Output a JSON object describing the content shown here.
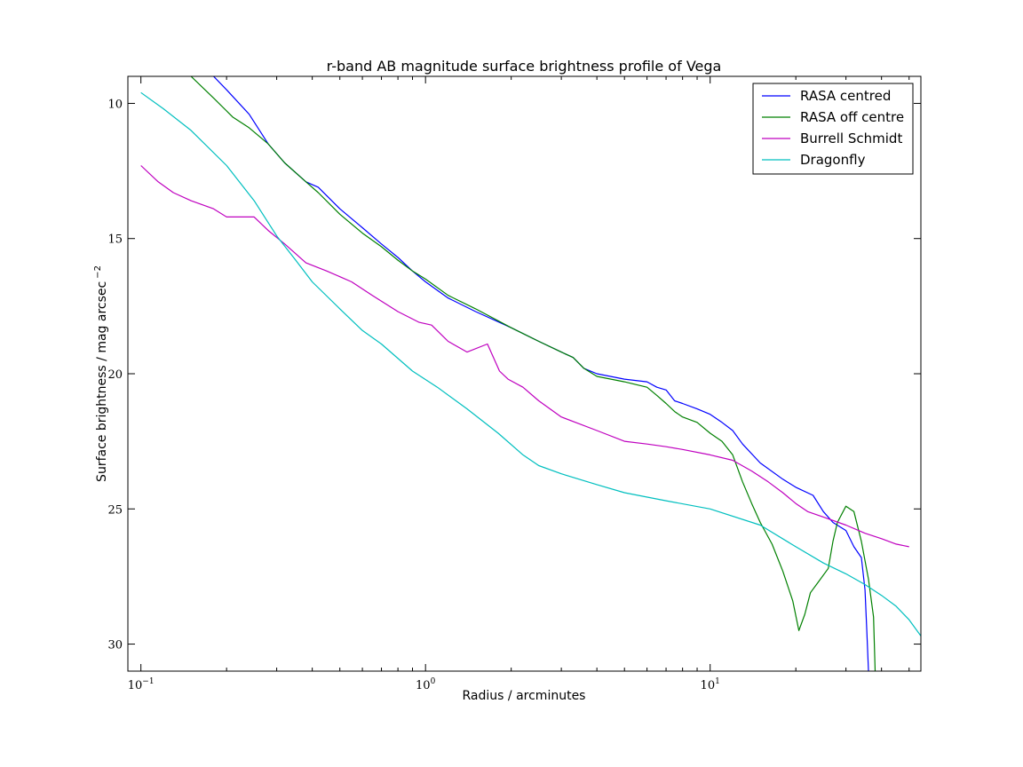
{
  "chart_data": {
    "type": "line",
    "title": "r-band AB magnitude surface brightness profile of Vega",
    "xlabel": "Radius / arcminutes",
    "ylabel": "Surface brightness / mag arcsec",
    "ylabel_sup": "−2",
    "xscale": "log",
    "xlim": [
      0.09,
      55
    ],
    "ylim": [
      31,
      9
    ],
    "y_inverted": true,
    "grid": false,
    "legend_position": "top-right",
    "x_ticks": [
      {
        "value": 0.1,
        "base": "10",
        "exp": "−1"
      },
      {
        "value": 1,
        "base": "10",
        "exp": "0"
      },
      {
        "value": 10,
        "base": "10",
        "exp": "1"
      }
    ],
    "y_ticks": [
      10,
      15,
      20,
      25,
      30
    ],
    "series": [
      {
        "name": "RASA centred",
        "color": "#0000ff",
        "x": [
          0.18,
          0.2,
          0.24,
          0.28,
          0.32,
          0.38,
          0.42,
          0.5,
          0.6,
          0.7,
          0.8,
          0.9,
          1.0,
          1.2,
          1.5,
          2.0,
          2.5,
          3.0,
          3.3,
          3.6,
          4.0,
          5.0,
          6.0,
          6.5,
          7.0,
          7.5,
          8.0,
          9.0,
          10.0,
          11.0,
          12.0,
          13.0,
          15.0,
          18.0,
          20.0,
          23.0,
          25.0,
          27.0,
          30.0,
          32.0,
          34.0,
          35.0,
          35.5,
          36.0
        ],
        "y": [
          9.0,
          9.5,
          10.4,
          11.5,
          12.2,
          12.9,
          13.1,
          13.9,
          14.6,
          15.2,
          15.7,
          16.2,
          16.6,
          17.2,
          17.7,
          18.3,
          18.8,
          19.2,
          19.4,
          19.8,
          20.0,
          20.2,
          20.3,
          20.5,
          20.6,
          21.0,
          21.1,
          21.3,
          21.5,
          21.8,
          22.1,
          22.6,
          23.3,
          23.9,
          24.2,
          24.5,
          25.1,
          25.5,
          25.8,
          26.4,
          26.8,
          28.0,
          29.5,
          31.0
        ]
      },
      {
        "name": "RASA off centre",
        "color": "#008000",
        "x": [
          0.15,
          0.18,
          0.21,
          0.24,
          0.28,
          0.32,
          0.38,
          0.42,
          0.5,
          0.6,
          0.7,
          0.8,
          0.9,
          1.0,
          1.2,
          1.5,
          2.0,
          2.5,
          3.0,
          3.3,
          3.6,
          4.0,
          5.0,
          6.0,
          6.5,
          7.0,
          7.5,
          8.0,
          9.0,
          10.0,
          11.0,
          12.0,
          13.0,
          14.0,
          15.0,
          16.5,
          18.0,
          19.5,
          20.5,
          21.5,
          22.5,
          24.0,
          26.0,
          27.0,
          28.0,
          30.0,
          32.0,
          34.0,
          36.0,
          37.5,
          38.0
        ],
        "y": [
          9.0,
          9.8,
          10.5,
          10.9,
          11.5,
          12.2,
          12.9,
          13.3,
          14.1,
          14.8,
          15.3,
          15.8,
          16.2,
          16.5,
          17.1,
          17.6,
          18.3,
          18.8,
          19.2,
          19.4,
          19.8,
          20.1,
          20.3,
          20.5,
          20.8,
          21.1,
          21.4,
          21.6,
          21.8,
          22.2,
          22.5,
          23.0,
          24.0,
          24.8,
          25.5,
          26.3,
          27.3,
          28.4,
          29.5,
          28.9,
          28.1,
          27.7,
          27.2,
          26.2,
          25.5,
          24.9,
          25.1,
          26.2,
          27.6,
          29.0,
          31.0
        ]
      },
      {
        "name": "Burrell Schmidt",
        "color": "#bf00bf",
        "x": [
          0.1,
          0.115,
          0.13,
          0.15,
          0.18,
          0.2,
          0.22,
          0.25,
          0.28,
          0.32,
          0.38,
          0.45,
          0.55,
          0.65,
          0.8,
          0.95,
          1.05,
          1.2,
          1.4,
          1.65,
          1.82,
          1.95,
          2.2,
          2.5,
          3.0,
          4.0,
          5.0,
          6.0,
          7.0,
          8.0,
          10.0,
          12.0,
          14.0,
          16.0,
          18.0,
          20.0,
          22.0,
          25.0,
          30.0,
          35.0,
          40.0,
          45.0,
          50.0
        ],
        "y": [
          12.3,
          12.9,
          13.3,
          13.6,
          13.9,
          14.2,
          14.2,
          14.2,
          14.7,
          15.2,
          15.9,
          16.2,
          16.6,
          17.1,
          17.7,
          18.1,
          18.2,
          18.8,
          19.2,
          18.9,
          19.9,
          20.2,
          20.5,
          21.0,
          21.6,
          22.1,
          22.5,
          22.6,
          22.7,
          22.8,
          23.0,
          23.2,
          23.6,
          24.0,
          24.4,
          24.8,
          25.1,
          25.3,
          25.6,
          25.9,
          26.1,
          26.3,
          26.4
        ]
      },
      {
        "name": "Dragonfly",
        "color": "#00bfbf",
        "x": [
          0.1,
          0.12,
          0.15,
          0.2,
          0.25,
          0.3,
          0.35,
          0.4,
          0.5,
          0.6,
          0.7,
          0.9,
          1.1,
          1.4,
          1.8,
          2.2,
          2.5,
          3.0,
          4.0,
          5.0,
          7.0,
          10.0,
          15.0,
          20.0,
          25.0,
          30.0,
          35.0,
          40.0,
          45.0,
          50.0,
          55.0
        ],
        "y": [
          9.6,
          10.2,
          11.0,
          12.3,
          13.6,
          14.9,
          15.8,
          16.6,
          17.6,
          18.4,
          18.9,
          19.9,
          20.5,
          21.3,
          22.2,
          23.0,
          23.4,
          23.7,
          24.1,
          24.4,
          24.7,
          25.0,
          25.6,
          26.4,
          27.0,
          27.4,
          27.8,
          28.2,
          28.6,
          29.1,
          29.7
        ]
      }
    ]
  }
}
